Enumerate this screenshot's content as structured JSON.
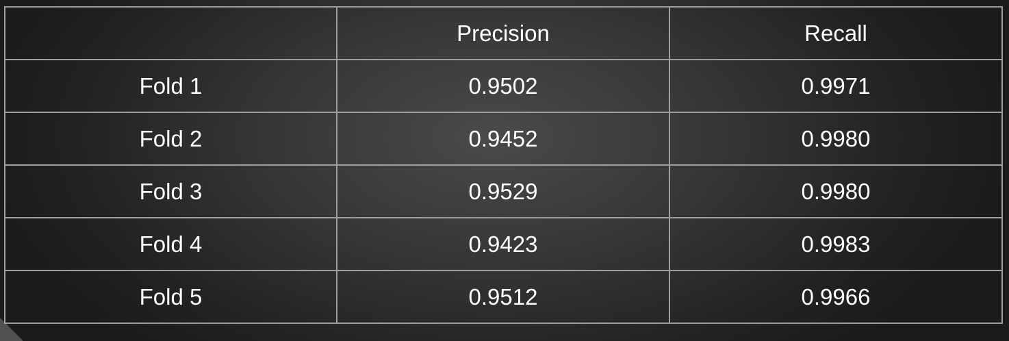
{
  "table": {
    "columns": [
      "",
      "Precision",
      "Recall"
    ],
    "rows": [
      {
        "label": "Fold 1",
        "precision": "0.9502",
        "recall": "0.9971"
      },
      {
        "label": "Fold 2",
        "precision": "0.9452",
        "recall": "0.9980"
      },
      {
        "label": "Fold 3",
        "precision": "0.9529",
        "recall": "0.9980"
      },
      {
        "label": "Fold 4",
        "precision": "0.9423",
        "recall": "0.9983"
      },
      {
        "label": "Fold 5",
        "precision": "0.9512",
        "recall": "0.9966"
      }
    ]
  }
}
